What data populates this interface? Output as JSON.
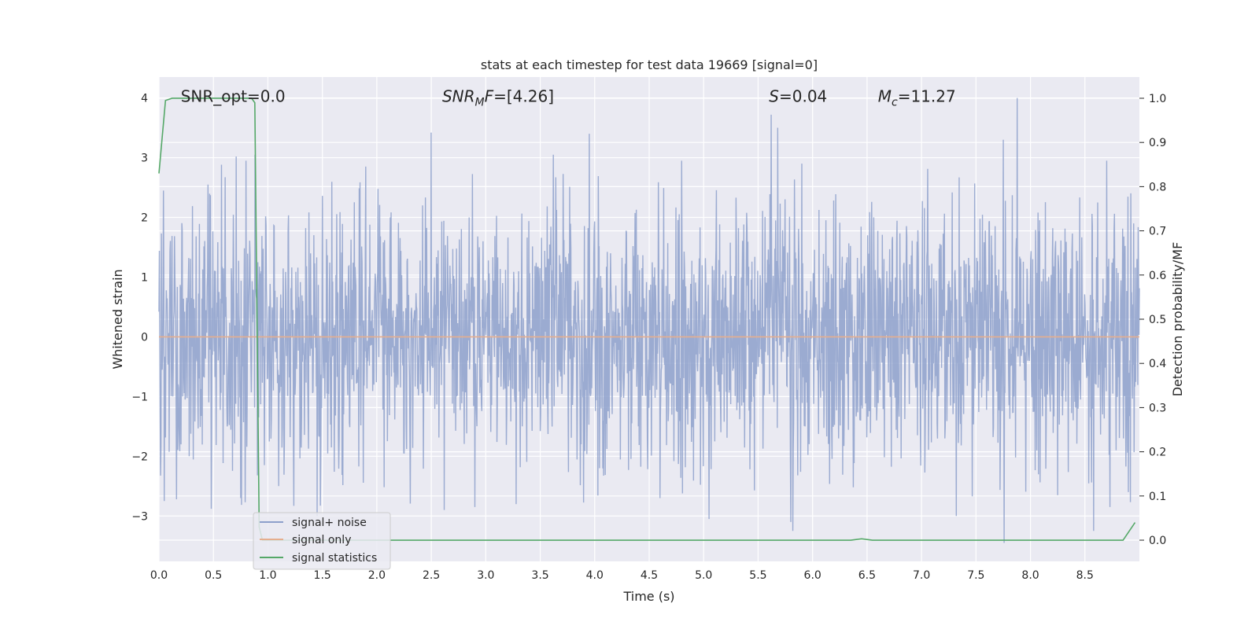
{
  "chart_data": {
    "type": "line",
    "title": "stats at each timestep for test data 19669 [signal=0]",
    "xlabel": "Time (s)",
    "ylabel": "Whitened strain",
    "y2label": "Detection probability/MF",
    "xlim": [
      0.0,
      9.0
    ],
    "ylim": [
      -3.76,
      4.35
    ],
    "y2lim": [
      -0.048,
      1.048
    ],
    "xticks": [
      0.0,
      0.5,
      1.0,
      1.5,
      2.0,
      2.5,
      3.0,
      3.5,
      4.0,
      4.5,
      5.0,
      5.5,
      6.0,
      6.5,
      7.0,
      7.5,
      8.0,
      8.5
    ],
    "xtick_labels": [
      "0.0",
      "0.5",
      "1.0",
      "1.5",
      "2.0",
      "2.5",
      "3.0",
      "3.5",
      "4.0",
      "4.5",
      "5.0",
      "5.5",
      "6.0",
      "6.5",
      "7.0",
      "7.5",
      "8.0",
      "8.5"
    ],
    "yticks": [
      -3,
      -2,
      -1,
      0,
      1,
      2,
      3,
      4
    ],
    "ytick_labels": [
      "−3",
      "−2",
      "−1",
      "0",
      "1",
      "2",
      "3",
      "4"
    ],
    "y2ticks": [
      0.0,
      0.1,
      0.2,
      0.3,
      0.4,
      0.5,
      0.6,
      0.7,
      0.8,
      0.9,
      1.0
    ],
    "y2tick_labels": [
      "0.0",
      "0.1",
      "0.2",
      "0.3",
      "0.4",
      "0.5",
      "0.6",
      "0.7",
      "0.8",
      "0.9",
      "1.0"
    ],
    "grid": true,
    "legend_position": "bottom-left",
    "annotations": [
      {
        "base": "SNR_opt=0.0",
        "sub": "",
        "rest": "",
        "italic": false,
        "x": 0.2
      },
      {
        "base": "SNR",
        "sub": "M",
        "rest": "F=[4.26]",
        "italic": true,
        "x": 2.6
      },
      {
        "base": "S",
        "sub": "",
        "rest": "=0.04",
        "italic": true,
        "x": 5.6
      },
      {
        "base": "M",
        "sub": "c",
        "rest": "=11.27",
        "italic": true,
        "x": 6.6
      }
    ],
    "annotation_y": 4.0,
    "series": [
      {
        "name": "signal+ noise",
        "color": "#8da0cb",
        "axis": "left",
        "style": "noise",
        "x_range": [
          0.0,
          9.0
        ],
        "spread": 1.05,
        "peaks": [
          {
            "x": 0.04,
            "y": 2.45
          },
          {
            "x": 0.05,
            "y": -2.75
          },
          {
            "x": 0.16,
            "y": -2.72
          },
          {
            "x": 0.45,
            "y": 2.55
          },
          {
            "x": 0.48,
            "y": -2.88
          },
          {
            "x": 0.71,
            "y": 3.02
          },
          {
            "x": 0.75,
            "y": -2.7
          },
          {
            "x": 0.8,
            "y": 2.95
          },
          {
            "x": 0.88,
            "y": 3.05
          },
          {
            "x": 1.1,
            "y": -2.5
          },
          {
            "x": 1.45,
            "y": -3.0
          },
          {
            "x": 1.9,
            "y": 2.85
          },
          {
            "x": 2.5,
            "y": 3.42
          },
          {
            "x": 2.62,
            "y": -2.9
          },
          {
            "x": 2.9,
            "y": -2.85
          },
          {
            "x": 3.28,
            "y": -2.8
          },
          {
            "x": 3.62,
            "y": 3.05
          },
          {
            "x": 3.95,
            "y": 3.4
          },
          {
            "x": 4.6,
            "y": -2.7
          },
          {
            "x": 4.8,
            "y": 2.95
          },
          {
            "x": 5.05,
            "y": -3.05
          },
          {
            "x": 5.62,
            "y": 3.72
          },
          {
            "x": 5.68,
            "y": 3.5
          },
          {
            "x": 5.8,
            "y": -3.1
          },
          {
            "x": 5.82,
            "y": -3.25
          },
          {
            "x": 5.9,
            "y": 2.9
          },
          {
            "x": 7.32,
            "y": -3.0
          },
          {
            "x": 7.75,
            "y": 3.3
          },
          {
            "x": 7.76,
            "y": -3.45
          },
          {
            "x": 7.88,
            "y": 4.0
          },
          {
            "x": 8.25,
            "y": -2.65
          },
          {
            "x": 8.58,
            "y": -3.25
          },
          {
            "x": 8.7,
            "y": 2.95
          },
          {
            "x": 8.9,
            "y": -2.6
          }
        ]
      },
      {
        "name": "signal only",
        "color": "#e5ae8e",
        "axis": "left",
        "style": "line",
        "x": [
          0.0,
          9.0
        ],
        "y": [
          0.0,
          0.0
        ]
      },
      {
        "name": "signal statistics",
        "color": "#55a868",
        "axis": "right",
        "style": "line",
        "x": [
          0.0,
          0.06,
          0.12,
          0.5,
          0.85,
          0.88,
          0.92,
          0.95,
          1.0,
          6.35,
          6.45,
          6.55,
          8.85,
          8.96
        ],
        "y": [
          0.83,
          0.995,
          1.0,
          1.0,
          1.0,
          0.99,
          0.03,
          0.0,
          0.0,
          0.0,
          0.003,
          0.0,
          0.0,
          0.04
        ]
      }
    ]
  }
}
